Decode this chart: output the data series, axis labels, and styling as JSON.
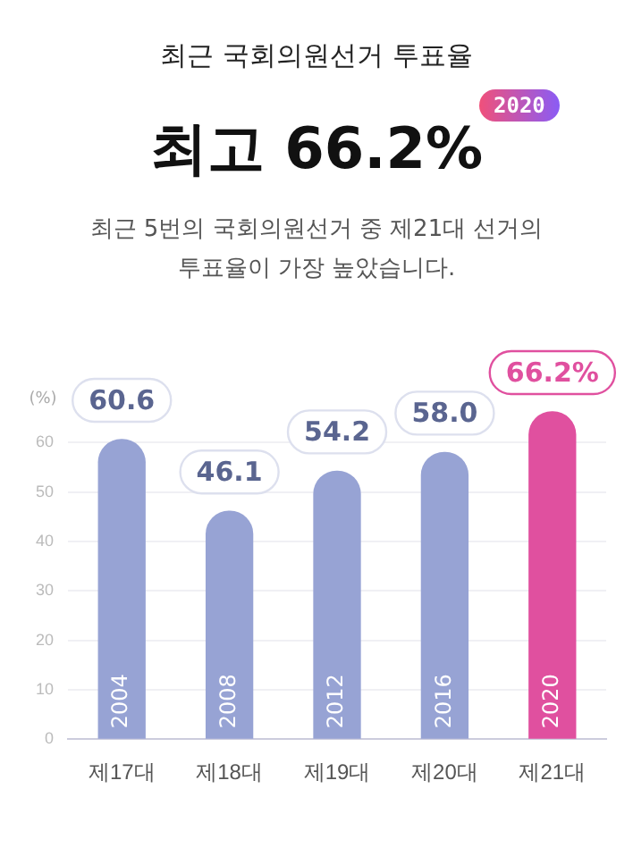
{
  "chart_data": {
    "type": "bar",
    "title": "최근 국회의원선거 투표율",
    "subtitle": "최고 66.2%",
    "ylabel": "(%)",
    "categories": [
      "제17대",
      "제18대",
      "제19대",
      "제20대",
      "제21대"
    ],
    "values": [
      60.6,
      46.1,
      54.2,
      58.0,
      66.2
    ],
    "colors": [
      "#97a3d4",
      "#97a3d4",
      "#97a3d4",
      "#97a3d4",
      "#e0509f"
    ],
    "value_labels": [
      "60.6",
      "46.1",
      "54.2",
      "58.0",
      "66.2%"
    ],
    "ylim": [
      0,
      70
    ],
    "yticks": [
      0,
      10,
      20,
      30,
      40,
      50,
      60
    ],
    "grid": "y",
    "legend": false,
    "annotations": [
      "2020",
      "최근 5번의 국회의원선거 중 제21대 선거의 투표율이 가장 높았습니다.",
      "2004",
      "2008",
      "2012",
      "2016",
      "2020"
    ]
  }
}
